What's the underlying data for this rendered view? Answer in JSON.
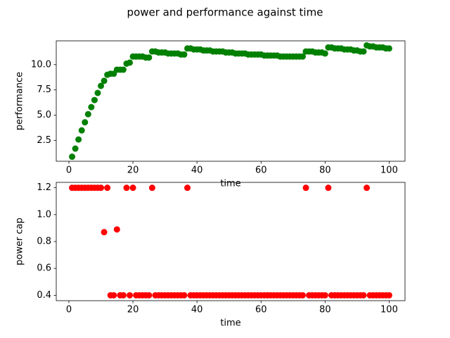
{
  "title": "power and performance against time",
  "chart_data": [
    {
      "type": "scatter",
      "ylabel": "performance",
      "xlabel": "time",
      "color": "#008000",
      "x": [
        1,
        2,
        3,
        4,
        5,
        6,
        7,
        8,
        9,
        10,
        11,
        12,
        13,
        14,
        15,
        16,
        17,
        18,
        19,
        20,
        21,
        22,
        23,
        24,
        25,
        26,
        27,
        28,
        29,
        30,
        31,
        32,
        33,
        34,
        35,
        36,
        37,
        38,
        39,
        40,
        41,
        42,
        43,
        44,
        45,
        46,
        47,
        48,
        49,
        50,
        51,
        52,
        53,
        54,
        55,
        56,
        57,
        58,
        59,
        60,
        61,
        62,
        63,
        64,
        65,
        66,
        67,
        68,
        69,
        70,
        71,
        72,
        73,
        74,
        75,
        76,
        77,
        78,
        79,
        80,
        81,
        82,
        83,
        84,
        85,
        86,
        87,
        88,
        89,
        90,
        91,
        92,
        93,
        94,
        95,
        96,
        97,
        98,
        99,
        100
      ],
      "values": [
        0.9,
        1.7,
        2.6,
        3.5,
        4.3,
        5.1,
        5.8,
        6.5,
        7.2,
        7.9,
        8.4,
        9.0,
        9.1,
        9.1,
        9.5,
        9.5,
        9.5,
        10.1,
        10.2,
        10.8,
        10.8,
        10.8,
        10.8,
        10.7,
        10.7,
        11.3,
        11.3,
        11.2,
        11.2,
        11.2,
        11.1,
        11.1,
        11.1,
        11.1,
        11.0,
        11.0,
        11.6,
        11.6,
        11.5,
        11.5,
        11.5,
        11.4,
        11.4,
        11.4,
        11.3,
        11.3,
        11.3,
        11.3,
        11.2,
        11.2,
        11.2,
        11.1,
        11.1,
        11.1,
        11.1,
        11.0,
        11.0,
        11.0,
        11.0,
        11.0,
        10.9,
        10.9,
        10.9,
        10.9,
        10.9,
        10.8,
        10.8,
        10.8,
        10.8,
        10.8,
        10.8,
        10.8,
        10.8,
        11.3,
        11.3,
        11.3,
        11.2,
        11.2,
        11.2,
        11.1,
        11.7,
        11.7,
        11.6,
        11.6,
        11.6,
        11.5,
        11.5,
        11.5,
        11.4,
        11.4,
        11.3,
        11.3,
        11.9,
        11.8,
        11.8,
        11.7,
        11.7,
        11.7,
        11.6,
        11.6
      ],
      "xlim": [
        -3.95,
        104.95
      ],
      "xticks": [
        0,
        20,
        40,
        60,
        80,
        100
      ],
      "ylim": [
        0.45,
        12.35
      ],
      "yticks": [
        2.5,
        {
          "value": 5,
          "label": "5.0"
        },
        7.5,
        {
          "value": 10,
          "label": "10.0"
        }
      ]
    },
    {
      "type": "scatter",
      "ylabel": "power cap",
      "xlabel": "time",
      "color": "#ff0000",
      "x": [
        1,
        2,
        3,
        4,
        5,
        6,
        7,
        8,
        9,
        10,
        11,
        12,
        13,
        14,
        15,
        16,
        17,
        18,
        19,
        20,
        21,
        22,
        23,
        24,
        25,
        26,
        27,
        28,
        29,
        30,
        31,
        32,
        33,
        34,
        35,
        36,
        37,
        38,
        39,
        40,
        41,
        42,
        43,
        44,
        45,
        46,
        47,
        48,
        49,
        50,
        51,
        52,
        53,
        54,
        55,
        56,
        57,
        58,
        59,
        60,
        61,
        62,
        63,
        64,
        65,
        66,
        67,
        68,
        69,
        70,
        71,
        72,
        73,
        74,
        75,
        76,
        77,
        78,
        79,
        80,
        81,
        82,
        83,
        84,
        85,
        86,
        87,
        88,
        89,
        90,
        91,
        92,
        93,
        94,
        95,
        96,
        97,
        98,
        99,
        100
      ],
      "values": [
        1.2,
        1.2,
        1.2,
        1.2,
        1.2,
        1.2,
        1.2,
        1.2,
        1.2,
        1.2,
        0.87,
        1.2,
        0.4,
        0.4,
        0.89,
        0.4,
        0.4,
        1.2,
        0.4,
        1.2,
        0.4,
        0.4,
        0.4,
        0.4,
        0.4,
        1.2,
        0.4,
        0.4,
        0.4,
        0.4,
        0.4,
        0.4,
        0.4,
        0.4,
        0.4,
        0.4,
        1.2,
        0.4,
        0.4,
        0.4,
        0.4,
        0.4,
        0.4,
        0.4,
        0.4,
        0.4,
        0.4,
        0.4,
        0.4,
        0.4,
        0.4,
        0.4,
        0.4,
        0.4,
        0.4,
        0.4,
        0.4,
        0.4,
        0.4,
        0.4,
        0.4,
        0.4,
        0.4,
        0.4,
        0.4,
        0.4,
        0.4,
        0.4,
        0.4,
        0.4,
        0.4,
        0.4,
        0.4,
        1.2,
        0.4,
        0.4,
        0.4,
        0.4,
        0.4,
        0.4,
        1.2,
        0.4,
        0.4,
        0.4,
        0.4,
        0.4,
        0.4,
        0.4,
        0.4,
        0.4,
        0.4,
        0.4,
        1.2,
        0.4,
        0.4,
        0.4,
        0.4,
        0.4,
        0.4,
        0.4
      ],
      "xlim": [
        -3.95,
        104.95
      ],
      "xticks": [
        0,
        20,
        40,
        60,
        80,
        100
      ],
      "ylim": [
        0.36,
        1.24
      ],
      "yticks": [
        0.4,
        0.6,
        0.8,
        {
          "value": 1,
          "label": "1.0"
        },
        1.2
      ]
    }
  ]
}
